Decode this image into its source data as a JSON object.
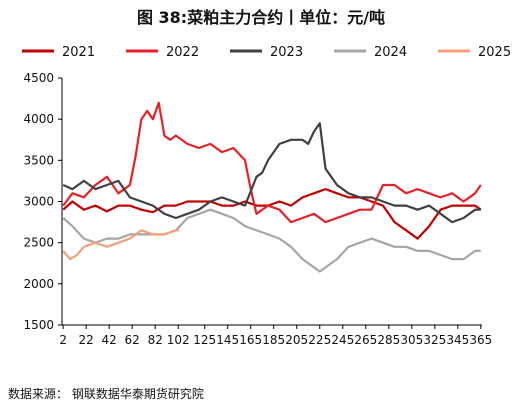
{
  "page": {
    "title": "图 38:菜粕主力合约丨单位：元/吨",
    "source": "数据来源：  钢联数据华泰期货研究院"
  },
  "chart_data": {
    "type": "line",
    "title": "图 38:菜粕主力合约丨单位：元/吨",
    "xlabel": "",
    "ylabel": "",
    "xlim": [
      1,
      366
    ],
    "ylim": [
      1500,
      4500
    ],
    "y_ticks": [
      1500,
      2000,
      2500,
      3000,
      3500,
      4000,
      4500
    ],
    "x_ticks": [
      2,
      22,
      42,
      62,
      82,
      102,
      125,
      145,
      165,
      185,
      205,
      225,
      245,
      265,
      285,
      305,
      325,
      345,
      365
    ],
    "grid": false,
    "legend_position": "top",
    "series": [
      {
        "name": "2021",
        "color": "#c00000",
        "x": [
          2,
          10,
          20,
          30,
          40,
          50,
          60,
          70,
          80,
          90,
          100,
          110,
          120,
          130,
          140,
          150,
          160,
          170,
          180,
          190,
          200,
          210,
          220,
          230,
          240,
          250,
          260,
          270,
          280,
          290,
          300,
          310,
          320,
          330,
          340,
          350,
          360,
          365
        ],
        "y": [
          2900,
          3000,
          2900,
          2950,
          2880,
          2950,
          2950,
          2900,
          2870,
          2950,
          2950,
          3000,
          3000,
          3000,
          2950,
          2950,
          3000,
          2950,
          2950,
          3000,
          2950,
          3050,
          3100,
          3150,
          3100,
          3050,
          3050,
          3000,
          2950,
          2750,
          2650,
          2550,
          2700,
          2900,
          2950,
          2950,
          2950,
          2900
        ]
      },
      {
        "name": "2022",
        "color": "#e8202a",
        "x": [
          2,
          10,
          20,
          30,
          40,
          50,
          60,
          65,
          70,
          75,
          80,
          85,
          90,
          95,
          100,
          110,
          120,
          130,
          140,
          150,
          160,
          165,
          170,
          180,
          190,
          200,
          210,
          220,
          230,
          240,
          250,
          260,
          270,
          280,
          290,
          300,
          310,
          320,
          330,
          340,
          350,
          360,
          365
        ],
        "y": [
          2950,
          3100,
          3050,
          3200,
          3300,
          3100,
          3200,
          3550,
          4000,
          4100,
          4000,
          4200,
          3800,
          3750,
          3800,
          3700,
          3650,
          3700,
          3600,
          3650,
          3500,
          3150,
          2850,
          2950,
          2900,
          2750,
          2800,
          2850,
          2750,
          2800,
          2850,
          2900,
          2900,
          3200,
          3200,
          3100,
          3150,
          3100,
          3050,
          3100,
          3000,
          3100,
          3200
        ]
      },
      {
        "name": "2023",
        "color": "#404040",
        "x": [
          2,
          10,
          20,
          30,
          40,
          50,
          60,
          70,
          80,
          90,
          100,
          110,
          120,
          130,
          140,
          150,
          160,
          170,
          175,
          180,
          190,
          200,
          210,
          215,
          220,
          225,
          230,
          240,
          250,
          260,
          270,
          280,
          290,
          300,
          310,
          320,
          330,
          340,
          350,
          360,
          365
        ],
        "y": [
          3200,
          3150,
          3250,
          3150,
          3200,
          3250,
          3050,
          3000,
          2950,
          2850,
          2800,
          2850,
          2900,
          3000,
          3050,
          3000,
          2950,
          3300,
          3350,
          3500,
          3700,
          3750,
          3750,
          3700,
          3850,
          3950,
          3400,
          3200,
          3100,
          3050,
          3050,
          3000,
          2950,
          2950,
          2900,
          2950,
          2850,
          2750,
          2800,
          2900,
          2900
        ]
      },
      {
        "name": "2024",
        "color": "#a6a6a6",
        "x": [
          2,
          10,
          20,
          30,
          40,
          50,
          60,
          70,
          80,
          90,
          100,
          110,
          120,
          130,
          140,
          150,
          160,
          170,
          180,
          190,
          200,
          210,
          220,
          225,
          230,
          240,
          250,
          260,
          270,
          280,
          290,
          300,
          310,
          320,
          330,
          340,
          350,
          360,
          365
        ],
        "y": [
          2800,
          2700,
          2550,
          2500,
          2550,
          2550,
          2600,
          2600,
          2600,
          2600,
          2650,
          2800,
          2850,
          2900,
          2850,
          2800,
          2700,
          2650,
          2600,
          2550,
          2450,
          2300,
          2200,
          2150,
          2200,
          2300,
          2450,
          2500,
          2550,
          2500,
          2450,
          2450,
          2400,
          2400,
          2350,
          2300,
          2300,
          2400,
          2400
        ]
      },
      {
        "name": "2025",
        "color": "#f4a07a",
        "x": [
          2,
          8,
          14,
          20,
          30,
          40,
          50,
          60,
          70,
          80,
          90,
          100,
          103
        ],
        "y": [
          2400,
          2300,
          2350,
          2450,
          2500,
          2450,
          2500,
          2550,
          2650,
          2600,
          2600,
          2650,
          2650
        ]
      }
    ]
  }
}
